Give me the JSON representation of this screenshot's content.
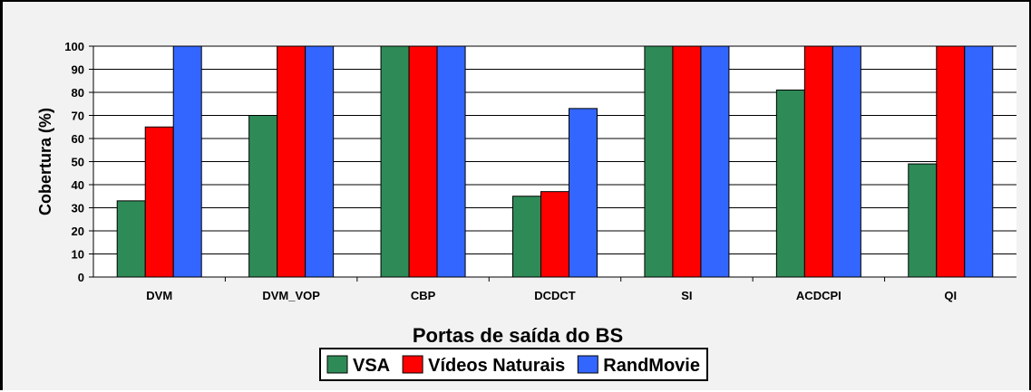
{
  "chart_data": {
    "type": "bar",
    "categories": [
      "DVM",
      "DVM_VOP",
      "CBP",
      "DCDCT",
      "SI",
      "ACDCPI",
      "QI"
    ],
    "series": [
      {
        "name": "VSA",
        "values": [
          33,
          70,
          100,
          35,
          100,
          81,
          49
        ],
        "color": "#2e8b57"
      },
      {
        "name": "Vídeos Naturais",
        "values": [
          65,
          100,
          100,
          37,
          100,
          100,
          100
        ],
        "color": "#ff0000"
      },
      {
        "name": "RandMovie",
        "values": [
          100,
          100,
          100,
          73,
          100,
          100,
          100
        ],
        "color": "#3366ff"
      }
    ],
    "title": "",
    "xlabel": "Portas de saída do BS",
    "ylabel": "Cobertura (%)",
    "ylim": [
      0,
      100
    ],
    "yticks": [
      0,
      10,
      20,
      30,
      40,
      50,
      60,
      70,
      80,
      90,
      100
    ],
    "grid": true,
    "legend": "bottom-center"
  }
}
